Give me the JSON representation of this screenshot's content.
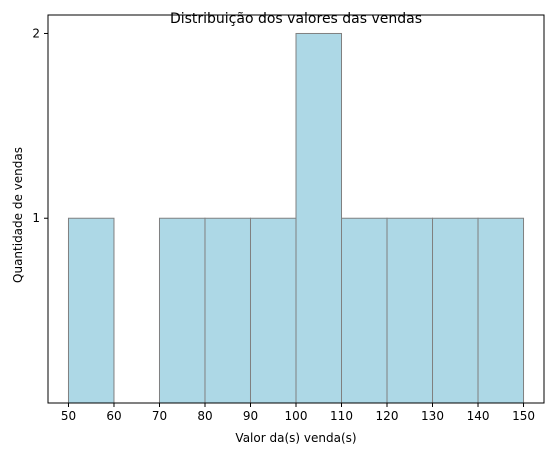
{
  "chart_data": {
    "type": "bar",
    "title": "Distribuição dos valores das vendas",
    "xlabel": "Valor da(s) venda(s)",
    "ylabel": "Quantidade de vendas",
    "bins": [
      {
        "from": 50,
        "to": 60,
        "count": 1
      },
      {
        "from": 60,
        "to": 70,
        "count": 0
      },
      {
        "from": 70,
        "to": 80,
        "count": 1
      },
      {
        "from": 80,
        "to": 90,
        "count": 1
      },
      {
        "from": 90,
        "to": 100,
        "count": 1
      },
      {
        "from": 100,
        "to": 110,
        "count": 2
      },
      {
        "from": 110,
        "to": 120,
        "count": 1
      },
      {
        "from": 120,
        "to": 130,
        "count": 1
      },
      {
        "from": 130,
        "to": 140,
        "count": 1
      },
      {
        "from": 140,
        "to": 150,
        "count": 1
      }
    ],
    "xticks": [
      "50",
      "60",
      "70",
      "80",
      "90",
      "100",
      "110",
      "120",
      "130",
      "140",
      "150"
    ],
    "yticks": [
      "1",
      "2"
    ],
    "xlim": [
      45.5,
      154.5
    ],
    "ylim": [
      0,
      2.1
    ],
    "grid": false,
    "bar_color": "#add8e6",
    "edge_color": "#808080"
  }
}
